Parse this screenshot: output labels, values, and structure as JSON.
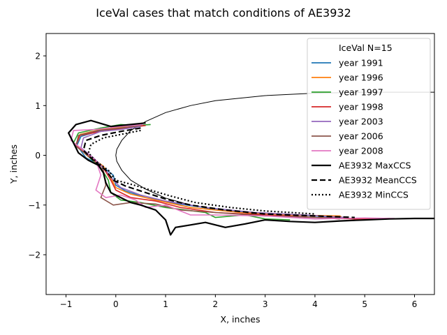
{
  "chart_data": {
    "type": "line",
    "title": "IceVal cases that match conditions of AE3932",
    "xlabel": "X, inches",
    "ylabel": "Y, inches",
    "xlim": [
      -1.4,
      6.4
    ],
    "ylim": [
      -2.8,
      2.45
    ],
    "xticks": [
      -1,
      0,
      1,
      2,
      3,
      4,
      5,
      6
    ],
    "yticks": [
      -2,
      -1,
      0,
      1,
      2
    ],
    "xtick_labels": [
      "−1",
      "0",
      "1",
      "2",
      "3",
      "4",
      "5",
      "6"
    ],
    "ytick_labels": [
      "−2",
      "−1",
      "0",
      "1",
      "2"
    ],
    "grid": false,
    "legend": {
      "title": "IceVal N=15",
      "placement": "top-right"
    },
    "airfoil": {
      "color": "#000000",
      "points": [
        [
          6.4,
          1.27
        ],
        [
          5.0,
          1.27
        ],
        [
          4.0,
          1.25
        ],
        [
          3.0,
          1.2
        ],
        [
          2.0,
          1.1
        ],
        [
          1.5,
          1.0
        ],
        [
          1.0,
          0.86
        ],
        [
          0.6,
          0.68
        ],
        [
          0.3,
          0.5
        ],
        [
          0.12,
          0.3
        ],
        [
          0.02,
          0.12
        ],
        [
          0.0,
          0.0
        ],
        [
          0.02,
          -0.12
        ],
        [
          0.12,
          -0.3
        ],
        [
          0.3,
          -0.5
        ],
        [
          0.6,
          -0.68
        ],
        [
          1.0,
          -0.86
        ],
        [
          1.5,
          -1.0
        ],
        [
          2.0,
          -1.1
        ],
        [
          3.0,
          -1.2
        ],
        [
          4.0,
          -1.25
        ],
        [
          5.0,
          -1.27
        ],
        [
          6.4,
          -1.27
        ]
      ]
    },
    "series": [
      {
        "name": "year 1991",
        "color": "#1f77b4",
        "style": "solid",
        "points": [
          [
            0.5,
            0.62
          ],
          [
            0.1,
            0.55
          ],
          [
            -0.3,
            0.5
          ],
          [
            -0.7,
            0.38
          ],
          [
            -0.78,
            0.2
          ],
          [
            -0.6,
            -0.05
          ],
          [
            -0.3,
            -0.2
          ],
          [
            -0.05,
            -0.4
          ],
          [
            0.0,
            -0.6
          ],
          [
            0.2,
            -0.72
          ],
          [
            0.6,
            -0.85
          ],
          [
            1.2,
            -0.97
          ],
          [
            2.0,
            -1.08
          ],
          [
            3.0,
            -1.18
          ],
          [
            4.0,
            -1.22
          ],
          [
            4.4,
            -1.25
          ]
        ]
      },
      {
        "name": "year 1996",
        "color": "#ff7f0e",
        "style": "solid",
        "points": [
          [
            0.55,
            0.65
          ],
          [
            0.2,
            0.58
          ],
          [
            -0.3,
            0.52
          ],
          [
            -0.72,
            0.42
          ],
          [
            -0.8,
            0.22
          ],
          [
            -0.55,
            0.0
          ],
          [
            -0.25,
            -0.22
          ],
          [
            -0.1,
            -0.45
          ],
          [
            0.0,
            -0.65
          ],
          [
            0.3,
            -0.78
          ],
          [
            0.8,
            -0.9
          ],
          [
            1.5,
            -1.05
          ],
          [
            2.5,
            -1.15
          ],
          [
            3.5,
            -1.2
          ],
          [
            4.5,
            -1.22
          ],
          [
            4.6,
            -1.28
          ]
        ]
      },
      {
        "name": "year 1997",
        "color": "#2ca02c",
        "style": "solid",
        "points": [
          [
            0.7,
            0.62
          ],
          [
            0.4,
            0.6
          ],
          [
            0.1,
            0.62
          ],
          [
            -0.3,
            0.55
          ],
          [
            -0.75,
            0.45
          ],
          [
            -0.85,
            0.25
          ],
          [
            -0.6,
            0.02
          ],
          [
            -0.3,
            -0.25
          ],
          [
            -0.15,
            -0.5
          ],
          [
            -0.1,
            -0.75
          ],
          [
            0.1,
            -0.9
          ],
          [
            0.5,
            -0.95
          ],
          [
            1.0,
            -1.05
          ],
          [
            1.8,
            -1.15
          ],
          [
            2.0,
            -1.25
          ],
          [
            2.6,
            -1.2
          ],
          [
            3.0,
            -1.28
          ],
          [
            3.5,
            -1.3
          ]
        ]
      },
      {
        "name": "year 1998",
        "color": "#d62728",
        "style": "solid",
        "points": [
          [
            0.6,
            0.6
          ],
          [
            0.2,
            0.55
          ],
          [
            -0.3,
            0.48
          ],
          [
            -0.72,
            0.4
          ],
          [
            -0.8,
            0.2
          ],
          [
            -0.55,
            -0.02
          ],
          [
            -0.25,
            -0.25
          ],
          [
            -0.1,
            -0.5
          ],
          [
            0.0,
            -0.7
          ],
          [
            0.3,
            -0.85
          ],
          [
            0.8,
            -0.92
          ],
          [
            1.3,
            -1.05
          ],
          [
            2.0,
            -1.15
          ],
          [
            3.0,
            -1.2
          ],
          [
            4.0,
            -1.25
          ],
          [
            4.8,
            -1.28
          ],
          [
            5.5,
            -1.27
          ]
        ]
      },
      {
        "name": "year 2003",
        "color": "#9467bd",
        "style": "solid",
        "points": [
          [
            0.5,
            0.58
          ],
          [
            0.1,
            0.52
          ],
          [
            -0.3,
            0.48
          ],
          [
            -0.65,
            0.35
          ],
          [
            -0.7,
            0.15
          ],
          [
            -0.45,
            -0.05
          ],
          [
            -0.2,
            -0.3
          ],
          [
            -0.05,
            -0.5
          ],
          [
            0.1,
            -0.65
          ],
          [
            0.5,
            -0.8
          ],
          [
            1.0,
            -0.92
          ],
          [
            1.8,
            -1.05
          ],
          [
            2.8,
            -1.15
          ],
          [
            3.8,
            -1.2
          ],
          [
            4.6,
            -1.25
          ]
        ]
      },
      {
        "name": "year 2006",
        "color": "#8c564b",
        "style": "solid",
        "points": [
          [
            0.5,
            0.6
          ],
          [
            0.1,
            0.55
          ],
          [
            -0.35,
            0.5
          ],
          [
            -0.75,
            0.4
          ],
          [
            -0.8,
            0.18
          ],
          [
            -0.5,
            -0.05
          ],
          [
            -0.25,
            -0.3
          ],
          [
            -0.2,
            -0.6
          ],
          [
            -0.3,
            -0.85
          ],
          [
            -0.05,
            -1.0
          ],
          [
            0.3,
            -0.95
          ],
          [
            0.8,
            -0.98
          ],
          [
            1.3,
            -1.1
          ],
          [
            2.0,
            -1.15
          ],
          [
            3.0,
            -1.22
          ],
          [
            4.0,
            -1.25
          ],
          [
            4.5,
            -1.28
          ]
        ]
      },
      {
        "name": "year 2008",
        "color": "#e377c2",
        "style": "solid",
        "points": [
          [
            0.55,
            0.62
          ],
          [
            0.1,
            0.58
          ],
          [
            -0.4,
            0.52
          ],
          [
            -0.85,
            0.5
          ],
          [
            -0.9,
            0.3
          ],
          [
            -0.65,
            0.1
          ],
          [
            -0.4,
            -0.1
          ],
          [
            -0.3,
            -0.4
          ],
          [
            -0.4,
            -0.7
          ],
          [
            -0.2,
            -0.85
          ],
          [
            0.1,
            -0.8
          ],
          [
            0.4,
            -0.9
          ],
          [
            0.6,
            -1.05
          ],
          [
            1.0,
            -1.0
          ],
          [
            1.5,
            -1.2
          ],
          [
            2.0,
            -1.2
          ],
          [
            3.0,
            -1.22
          ],
          [
            4.0,
            -1.28
          ],
          [
            5.0,
            -1.26
          ],
          [
            5.6,
            -1.27
          ]
        ]
      },
      {
        "name": "AE3932 MaxCCS",
        "color": "#000000",
        "style": "solid",
        "points": [
          [
            0.6,
            0.65
          ],
          [
            0.3,
            0.62
          ],
          [
            -0.1,
            0.58
          ],
          [
            -0.5,
            0.7
          ],
          [
            -0.8,
            0.62
          ],
          [
            -0.95,
            0.45
          ],
          [
            -0.85,
            0.25
          ],
          [
            -0.75,
            0.05
          ],
          [
            -0.55,
            -0.1
          ],
          [
            -0.35,
            -0.2
          ],
          [
            -0.25,
            -0.35
          ],
          [
            -0.2,
            -0.55
          ],
          [
            -0.1,
            -0.75
          ],
          [
            0.1,
            -0.85
          ],
          [
            0.3,
            -0.95
          ],
          [
            0.5,
            -1.0
          ],
          [
            0.8,
            -1.1
          ],
          [
            1.0,
            -1.3
          ],
          [
            1.1,
            -1.6
          ],
          [
            1.2,
            -1.45
          ],
          [
            1.5,
            -1.4
          ],
          [
            1.8,
            -1.35
          ],
          [
            2.2,
            -1.45
          ],
          [
            2.6,
            -1.38
          ],
          [
            3.0,
            -1.3
          ],
          [
            3.5,
            -1.33
          ],
          [
            4.0,
            -1.35
          ],
          [
            4.5,
            -1.32
          ],
          [
            5.0,
            -1.3
          ],
          [
            5.5,
            -1.28
          ],
          [
            6.0,
            -1.27
          ],
          [
            6.4,
            -1.27
          ]
        ]
      },
      {
        "name": "AE3932 MeanCCS",
        "color": "#000000",
        "style": "dashed",
        "points": [
          [
            0.5,
            0.55
          ],
          [
            0.1,
            0.48
          ],
          [
            -0.3,
            0.4
          ],
          [
            -0.6,
            0.3
          ],
          [
            -0.65,
            0.1
          ],
          [
            -0.45,
            -0.1
          ],
          [
            -0.2,
            -0.3
          ],
          [
            -0.05,
            -0.5
          ],
          [
            0.2,
            -0.62
          ],
          [
            0.6,
            -0.75
          ],
          [
            1.0,
            -0.88
          ],
          [
            1.5,
            -1.0
          ],
          [
            2.2,
            -1.1
          ],
          [
            3.0,
            -1.18
          ],
          [
            4.0,
            -1.22
          ],
          [
            4.8,
            -1.25
          ]
        ]
      },
      {
        "name": "AE3932 MinCCS",
        "color": "#000000",
        "style": "dotted",
        "points": [
          [
            0.5,
            0.5
          ],
          [
            0.1,
            0.42
          ],
          [
            -0.25,
            0.35
          ],
          [
            -0.5,
            0.22
          ],
          [
            -0.55,
            0.05
          ],
          [
            -0.4,
            -0.12
          ],
          [
            -0.15,
            -0.3
          ],
          [
            0.0,
            -0.5
          ],
          [
            0.3,
            -0.58
          ],
          [
            0.7,
            -0.7
          ],
          [
            1.1,
            -0.82
          ],
          [
            1.6,
            -0.95
          ],
          [
            2.3,
            -1.05
          ],
          [
            3.0,
            -1.12
          ],
          [
            4.0,
            -1.18
          ]
        ]
      }
    ]
  }
}
